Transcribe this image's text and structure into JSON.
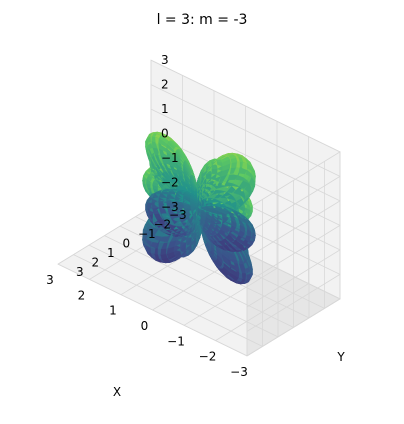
{
  "chart_data": {
    "type": "surface3d",
    "title": "l = 3: m = -3",
    "xlabel": "X",
    "ylabel": "Y",
    "zlabel": "",
    "xlim": [
      -3,
      3
    ],
    "ylim": [
      -3,
      3
    ],
    "zlim": [
      -3,
      3
    ],
    "xticks": [
      -3,
      -2,
      -1,
      0,
      1,
      2,
      3
    ],
    "yticks": [
      -3,
      -2,
      -1,
      0,
      1,
      2,
      3
    ],
    "zticks": [
      -3,
      -2,
      -1,
      0,
      1,
      2,
      3
    ],
    "grid": true,
    "colormap": "viridis",
    "surface": {
      "l": 3,
      "m": -3,
      "lobes_vertical": 4,
      "lobes_upper": 4,
      "lobes_lower": 4,
      "lobe_extent": 2.7
    },
    "colors": {
      "pane": "#f2f2f2",
      "pane_side": "#e6e6e6",
      "grid": "#d8d8d8",
      "viridis": [
        "#440154",
        "#3b528b",
        "#21918c",
        "#5ec962",
        "#fde725"
      ]
    }
  }
}
